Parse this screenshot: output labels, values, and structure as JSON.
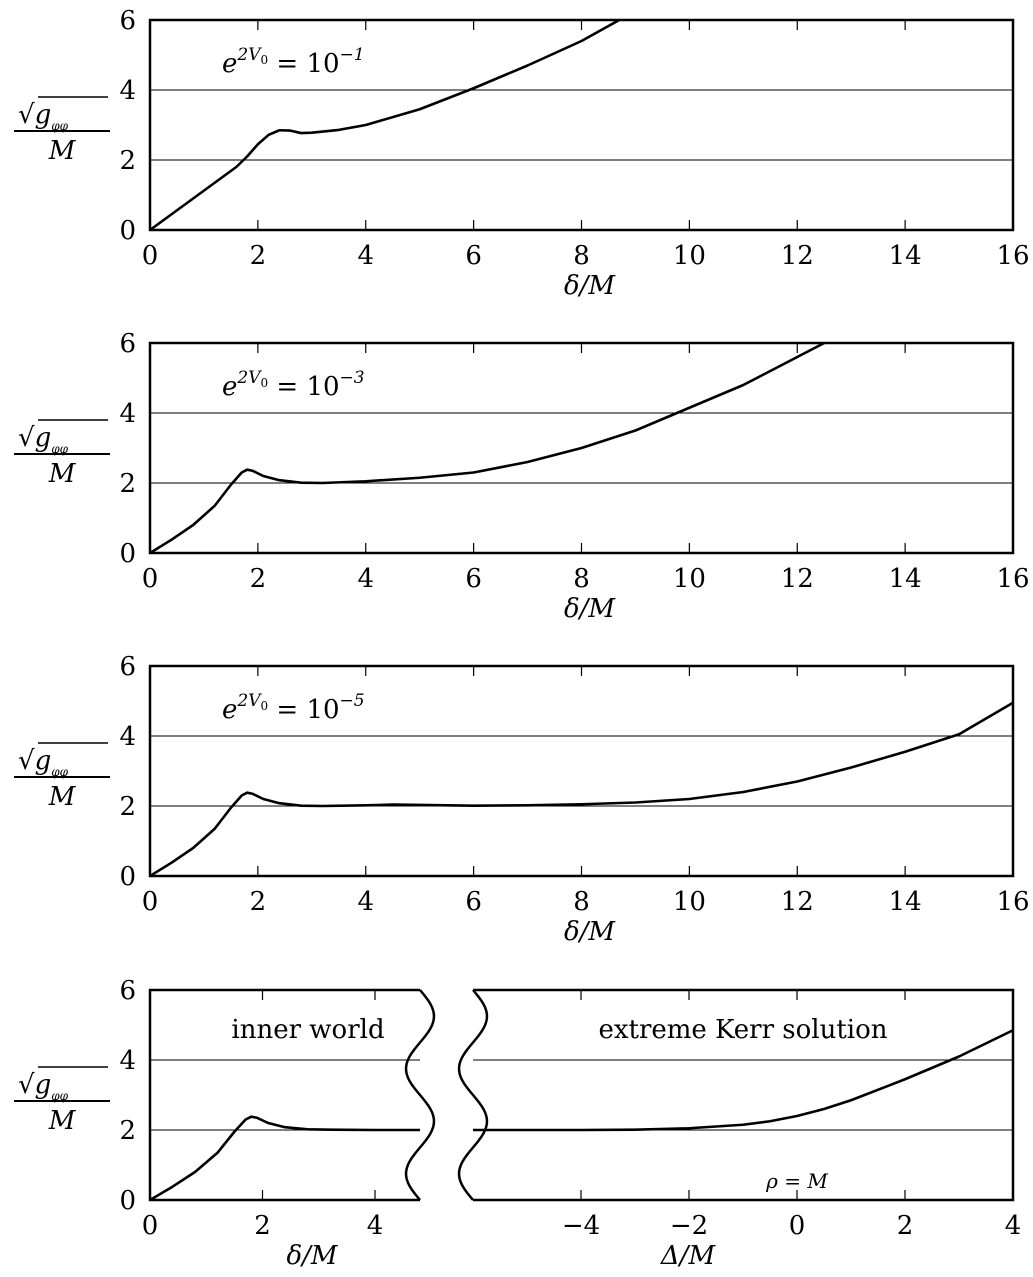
{
  "chart_data": [
    {
      "type": "line",
      "annotation": {
        "base": "e",
        "exp": "2V",
        "sub": "0",
        "rhs": "= 10",
        "rhs_exp": "−1"
      },
      "xlabel": "δ/M",
      "ylabel": {
        "numerator": "√g",
        "sub": "φφ",
        "denominator": "M"
      },
      "xlim": [
        0,
        16
      ],
      "ylim": [
        0,
        6
      ],
      "xticks": [
        "0",
        "2",
        "4",
        "6",
        "8",
        "10",
        "12",
        "14",
        "16"
      ],
      "yticks": [
        "0",
        "2",
        "4",
        "6"
      ],
      "grid_y": [
        2,
        4
      ],
      "series": [
        {
          "x": [
            0,
            0.4,
            0.8,
            1.2,
            1.6,
            1.8,
            2.0,
            2.2,
            2.4,
            2.6,
            2.8,
            3.0,
            3.5,
            4.0,
            5.0,
            6.0,
            7.0,
            8.0,
            8.7
          ],
          "y": [
            0,
            0.45,
            0.9,
            1.35,
            1.8,
            2.1,
            2.45,
            2.72,
            2.85,
            2.84,
            2.77,
            2.78,
            2.86,
            3.0,
            3.45,
            4.05,
            4.7,
            5.4,
            6.0
          ]
        }
      ]
    },
    {
      "type": "line",
      "annotation": {
        "base": "e",
        "exp": "2V",
        "sub": "0",
        "rhs": "= 10",
        "rhs_exp": "−3"
      },
      "xlabel": "δ/M",
      "ylabel": {
        "numerator": "√g",
        "sub": "φφ",
        "denominator": "M"
      },
      "xlim": [
        0,
        16
      ],
      "ylim": [
        0,
        6
      ],
      "xticks": [
        "0",
        "2",
        "4",
        "6",
        "8",
        "10",
        "12",
        "14",
        "16"
      ],
      "yticks": [
        "0",
        "2",
        "4",
        "6"
      ],
      "grid_y": [
        2,
        4
      ],
      "series": [
        {
          "x": [
            0,
            0.4,
            0.8,
            1.2,
            1.5,
            1.7,
            1.8,
            1.9,
            2.1,
            2.4,
            2.8,
            3.2,
            4.0,
            5.0,
            6.0,
            7.0,
            8.0,
            9.0,
            10.0,
            11.0,
            12.0,
            12.5
          ],
          "y": [
            0,
            0.38,
            0.8,
            1.35,
            1.95,
            2.3,
            2.38,
            2.35,
            2.2,
            2.08,
            2.01,
            2.0,
            2.05,
            2.15,
            2.3,
            2.6,
            3.0,
            3.5,
            4.15,
            4.8,
            5.6,
            6.0
          ]
        }
      ]
    },
    {
      "type": "line",
      "annotation": {
        "base": "e",
        "exp": "2V",
        "sub": "0",
        "rhs": "= 10",
        "rhs_exp": "−5"
      },
      "xlabel": "δ/M",
      "ylabel": {
        "numerator": "√g",
        "sub": "φφ",
        "denominator": "M"
      },
      "xlim": [
        0,
        16
      ],
      "ylim": [
        0,
        6
      ],
      "xticks": [
        "0",
        "2",
        "4",
        "6",
        "8",
        "10",
        "12",
        "14",
        "16"
      ],
      "yticks": [
        "0",
        "2",
        "4",
        "6"
      ],
      "grid_y": [
        2,
        4
      ],
      "series": [
        {
          "x": [
            0,
            0.4,
            0.8,
            1.2,
            1.5,
            1.7,
            1.8,
            1.9,
            2.1,
            2.4,
            2.8,
            3.2,
            4.0,
            4.5,
            5.0,
            6.0,
            7.0,
            8.0,
            9.0,
            10.0,
            11.0,
            12.0,
            13.0,
            14.0,
            15.0,
            16.0
          ],
          "y": [
            0,
            0.38,
            0.8,
            1.35,
            1.95,
            2.3,
            2.38,
            2.35,
            2.2,
            2.08,
            2.01,
            2.0,
            2.02,
            2.04,
            2.03,
            2.01,
            2.02,
            2.05,
            2.1,
            2.2,
            2.4,
            2.7,
            3.1,
            3.55,
            4.05,
            4.95
          ]
        }
      ]
    },
    {
      "type": "line",
      "left": {
        "annotation": "inner world",
        "xlabel": "δ/M",
        "xlim": [
          0,
          4.8
        ],
        "xticks": [
          "0",
          "2",
          "4"
        ],
        "series": [
          {
            "x": [
              0,
              0.4,
              0.8,
              1.2,
              1.5,
              1.7,
              1.8,
              1.9,
              2.1,
              2.4,
              2.8,
              3.2,
              4.0,
              4.8
            ],
            "y": [
              0,
              0.38,
              0.8,
              1.35,
              1.95,
              2.3,
              2.38,
              2.35,
              2.2,
              2.08,
              2.02,
              2.01,
              2.0,
              2.0
            ]
          }
        ]
      },
      "right": {
        "annotation": "extreme Kerr solution",
        "marker": "ρ = M",
        "marker_x": 0,
        "xlabel": "Δ/M",
        "xlim": [
          -6.0,
          4
        ],
        "xticks": [
          "−4",
          "−2",
          "0",
          "2",
          "4"
        ],
        "series": [
          {
            "x": [
              -6.0,
              -5.0,
              -4.0,
              -3.0,
              -2.0,
              -1.0,
              -0.5,
              0,
              0.5,
              1.0,
              2.0,
              3.0,
              4.0
            ],
            "y": [
              2.0,
              2.0,
              2.0,
              2.01,
              2.05,
              2.15,
              2.25,
              2.4,
              2.6,
              2.85,
              3.45,
              4.1,
              4.85
            ]
          }
        ]
      },
      "ylabel": {
        "numerator": "√g",
        "sub": "φφ",
        "denominator": "M"
      },
      "ylim": [
        0,
        6
      ],
      "yticks": [
        "0",
        "2",
        "4",
        "6"
      ],
      "grid_y": [
        2,
        4
      ]
    }
  ]
}
